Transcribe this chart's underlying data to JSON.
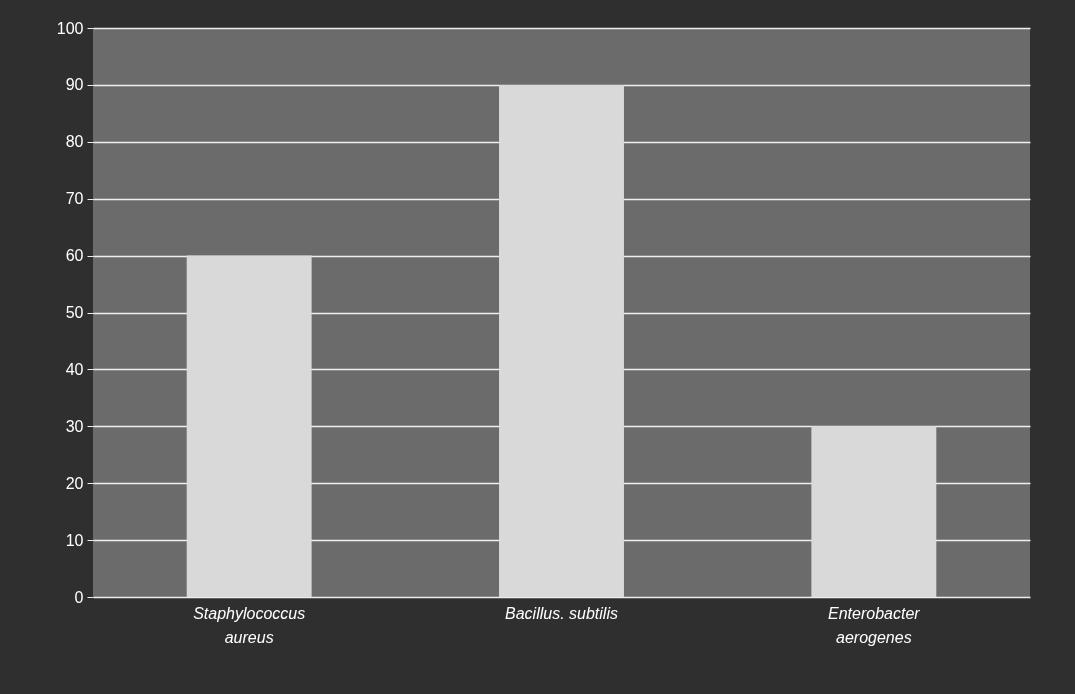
{
  "chart_data": {
    "type": "bar",
    "categories": [
      "Staphylococcus aureus",
      "Bacillus. subtilis",
      "Enterobacter aerogenes"
    ],
    "values": [
      60,
      90,
      30
    ],
    "color": "#d9d9d9",
    "ylim": [
      0,
      100
    ],
    "yticks": [
      0,
      10,
      20,
      30,
      40,
      50,
      60,
      70,
      80,
      90,
      100
    ],
    "grid": "y"
  }
}
